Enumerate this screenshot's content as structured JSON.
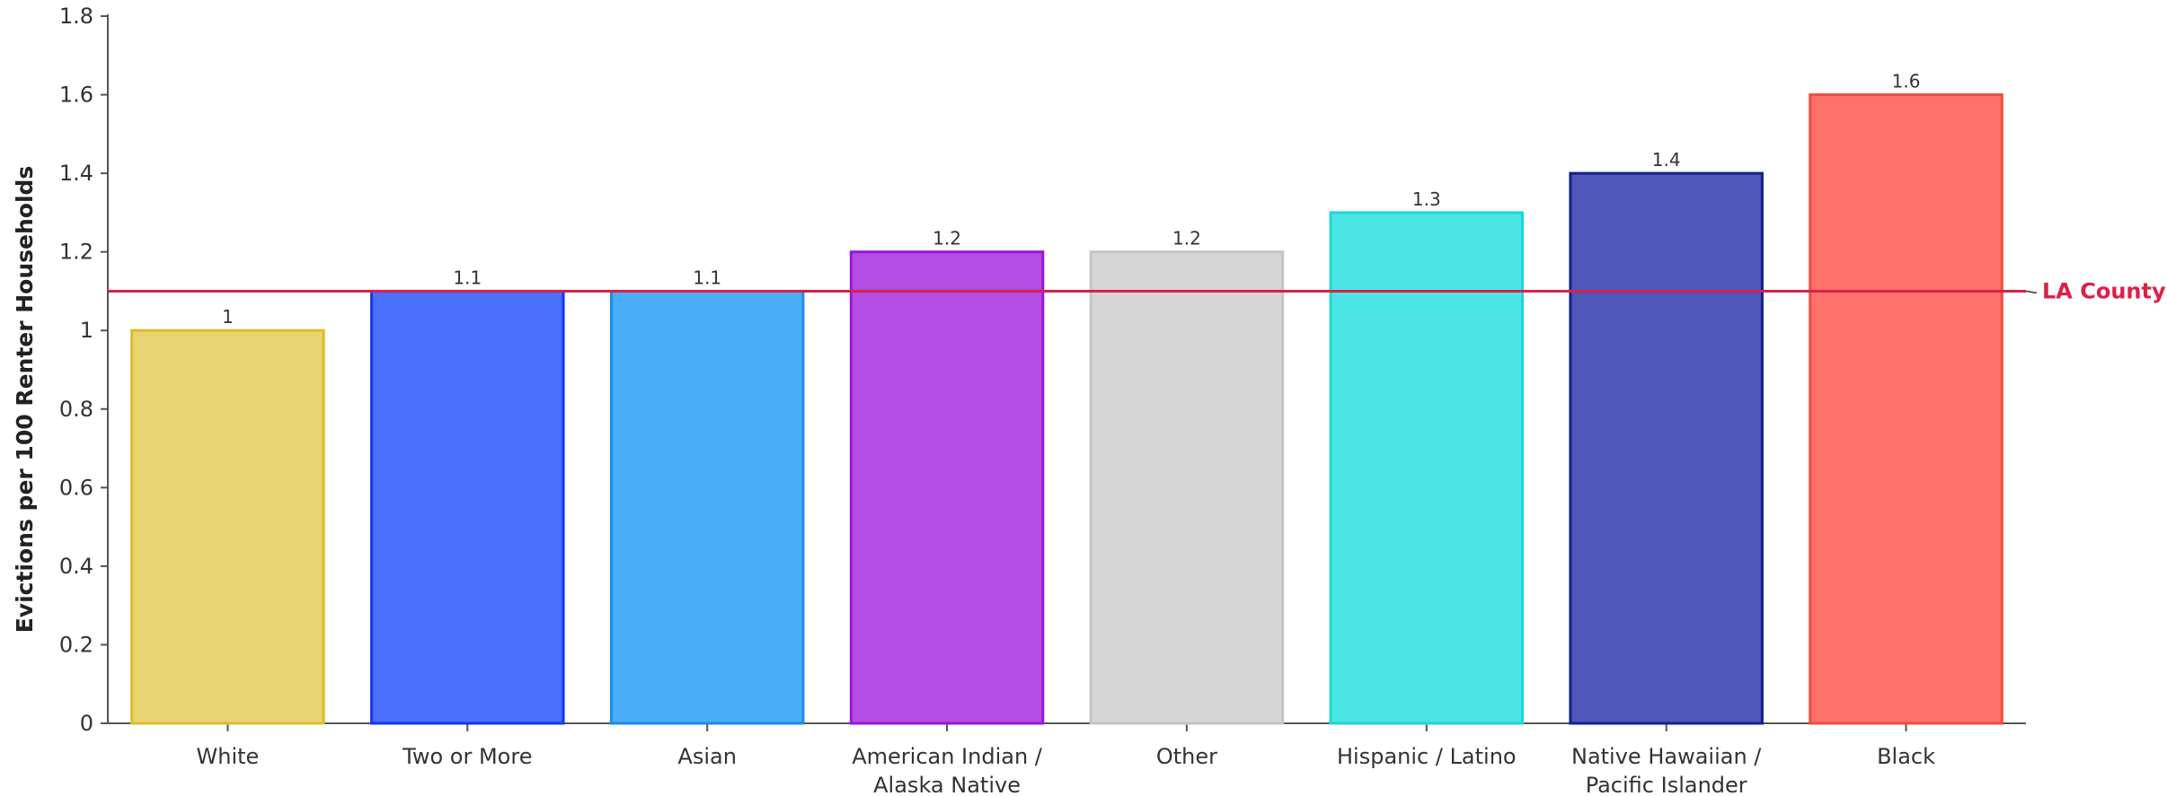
{
  "chart_data": {
    "type": "bar",
    "title": "",
    "xlabel": "",
    "ylabel": "Evictions per 100 Renter Households",
    "ylim": [
      0,
      1.8
    ],
    "yticks": [
      0,
      0.2,
      0.4,
      0.6,
      0.8,
      1,
      1.2,
      1.4,
      1.6,
      1.8
    ],
    "ytick_labels": [
      "0",
      "0.2",
      "0.4",
      "0.6",
      "0.8",
      "1",
      "1.2",
      "1.4",
      "1.6",
      "1.8"
    ],
    "grid": false,
    "categories": [
      "White",
      "Two or More",
      "Asian",
      "American Indian / Alaska Native",
      "Other",
      "Hispanic / Latino",
      "Native Hawaiian / Pacific Islander",
      "Black"
    ],
    "category_lines": [
      [
        "White"
      ],
      [
        "Two or More"
      ],
      [
        "Asian"
      ],
      [
        "American Indian /",
        "Alaska Native"
      ],
      [
        "Other"
      ],
      [
        "Hispanic / Latino"
      ],
      [
        "Native Hawaiian /",
        "Pacific Islander"
      ],
      [
        "Black"
      ]
    ],
    "values": [
      1,
      1.1,
      1.1,
      1.2,
      1.2,
      1.3,
      1.4,
      1.6
    ],
    "value_labels": [
      "1",
      "1.1",
      "1.1",
      "1.2",
      "1.2",
      "1.3",
      "1.4",
      "1.6"
    ],
    "bar_fill_colors": [
      "#E8D470",
      "#4A6FFC",
      "#4BAEF8",
      "#B24CE3",
      "#D6D6D6",
      "#4BE5E5",
      "#4C57B8",
      "#FF726A"
    ],
    "bar_stroke_colors": [
      "#D9BE2C",
      "#1736F0",
      "#1A8EEA",
      "#9A16D8",
      "#C4C4C4",
      "#1FD6D6",
      "#12208F",
      "#F24A42"
    ],
    "reference_line": {
      "label": "LA County",
      "value": 1.1,
      "color": "#DC1F48"
    }
  }
}
